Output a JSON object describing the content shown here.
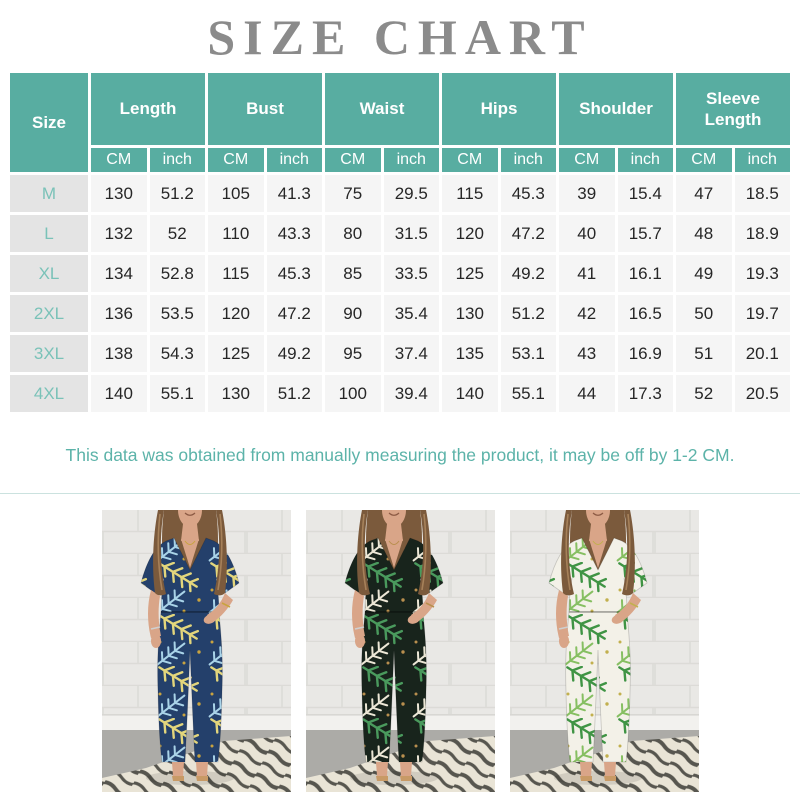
{
  "title": "SIZE CHART",
  "table": {
    "size_header": "Size",
    "unit_cm": "CM",
    "unit_inch": "inch",
    "columns": [
      "Length",
      "Bust",
      "Waist",
      "Hips",
      "Shoulder",
      "Sleeve Length"
    ],
    "rows": [
      {
        "size": "M",
        "values": [
          130,
          51.2,
          105,
          41.3,
          75,
          29.5,
          115,
          45.3,
          39,
          15.4,
          47,
          18.5
        ]
      },
      {
        "size": "L",
        "values": [
          132,
          52,
          110,
          43.3,
          80,
          31.5,
          120,
          47.2,
          40,
          15.7,
          48,
          18.9
        ]
      },
      {
        "size": "XL",
        "values": [
          134,
          52.8,
          115,
          45.3,
          85,
          33.5,
          125,
          49.2,
          41,
          16.1,
          49,
          19.3
        ]
      },
      {
        "size": "2XL",
        "values": [
          136,
          53.5,
          120,
          47.2,
          90,
          35.4,
          130,
          51.2,
          42,
          16.5,
          50,
          19.7
        ]
      },
      {
        "size": "3XL",
        "values": [
          138,
          54.3,
          125,
          49.2,
          95,
          37.4,
          135,
          53.1,
          43,
          16.9,
          51,
          20.1
        ]
      },
      {
        "size": "4XL",
        "values": [
          140,
          55.1,
          130,
          51.2,
          100,
          39.4,
          140,
          55.1,
          44,
          17.3,
          52,
          20.5
        ]
      }
    ]
  },
  "note": "This data was obtained from manually measuring the product, it may be off by 1-2 CM.",
  "colors": {
    "header_teal": "#58ada1",
    "size_label_teal": "#7ac2b8",
    "note_teal": "#5cb3a9",
    "title_gray": "#8b8b8b",
    "cell_gray": "#f5f5f5",
    "size_col_gray": "#e4e4e4"
  },
  "photos": [
    {
      "name": "navy-tropical-jumpsuit",
      "base": "#24406b",
      "leaf1": "#e3d67c",
      "leaf2": "#a9d3e8",
      "dots": "#c9a33f"
    },
    {
      "name": "black-green-tropical-jumpsuit",
      "base": "#18241c",
      "leaf1": "#4a9a5d",
      "leaf2": "#ece7d6",
      "dots": "#b98f4e"
    },
    {
      "name": "white-green-tropical-jumpsuit",
      "base": "#f3f1e8",
      "leaf1": "#3f9444",
      "leaf2": "#86bf62",
      "dots": "#c2b04e"
    }
  ]
}
